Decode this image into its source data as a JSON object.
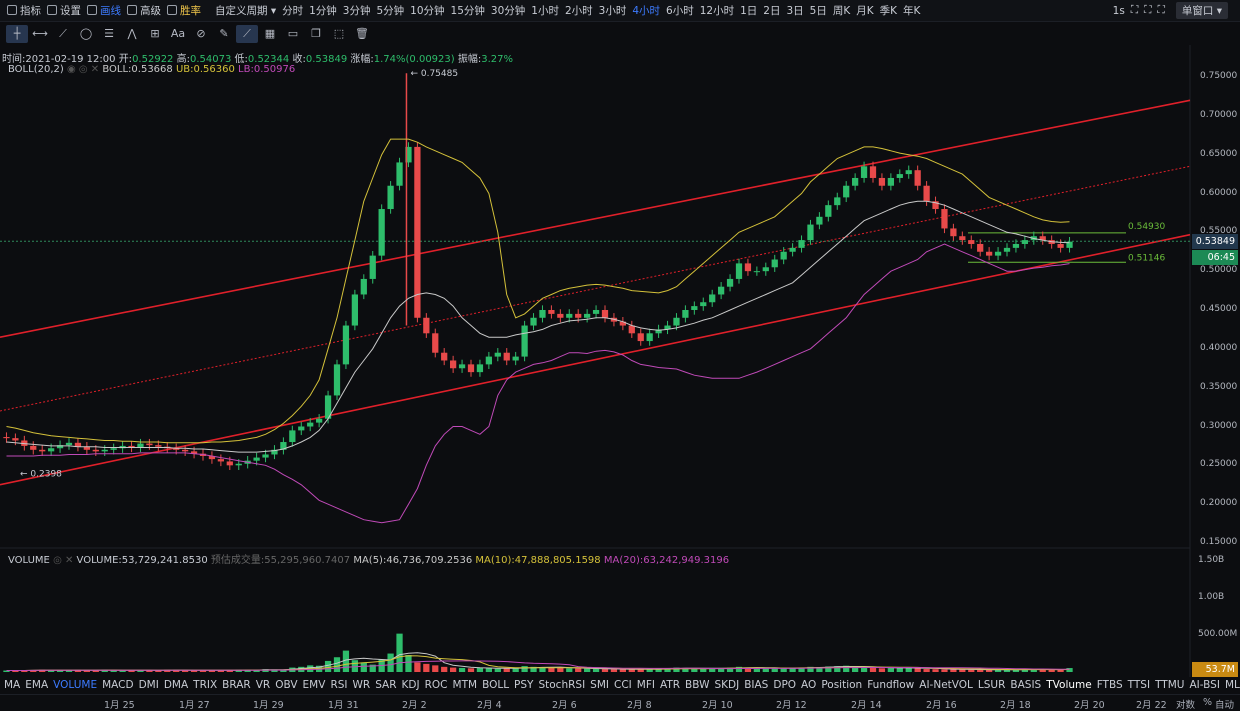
{
  "topbar": {
    "items": [
      "指标",
      "设置",
      "画线",
      "高级",
      "胜率",
      "自定义周期",
      "分时",
      "1分钟",
      "3分钟",
      "5分钟",
      "10分钟",
      "15分钟",
      "30分钟",
      "1小时",
      "2小时",
      "3小时",
      "4小时",
      "6小时",
      "12小时",
      "1日",
      "2日",
      "3日",
      "5日",
      "周K",
      "月K",
      "季K",
      "年K"
    ],
    "active_period": "4小时",
    "right": {
      "interval": "1s",
      "window_mode": "单窗口"
    }
  },
  "ohlc": {
    "time_label": "时间:",
    "time": "2021-02-19 12:00",
    "open_label": "开:",
    "open": "0.52922",
    "high_label": "高:",
    "high": "0.54073",
    "low_label": "低:",
    "low": "0.52344",
    "close_label": "收:",
    "close": "0.53849",
    "change_label": "涨幅:",
    "change": "1.74%(0.00923)",
    "amp_label": "振幅:",
    "amp": "3.27%"
  },
  "boll": {
    "name": "BOLL(20,2)",
    "mid": "BOLL:0.53668",
    "ub": "UB:0.56360",
    "lb": "LB:0.50976"
  },
  "volume": {
    "name": "VOLUME",
    "value": "VOLUME:53,729,241.8530",
    "est": "预估成交量:55,295,960.7407",
    "ma5": "MA(5):46,736,709.2536",
    "ma10": "MA(10):47,888,805.1598",
    "ma20": "MA(20):63,242,949.3196"
  },
  "price_axis": [
    "0.75000",
    "0.70000",
    "0.65000",
    "0.60000",
    "0.55000",
    "0.50000",
    "0.45000",
    "0.40000",
    "0.35000",
    "0.30000",
    "0.25000",
    "0.20000",
    "0.15000"
  ],
  "volume_axis": [
    "1.50B",
    "1.00B",
    "500.00M"
  ],
  "current_price": "0.53849",
  "countdown": "06:45",
  "current_volume": "53.7M",
  "annotations": {
    "high": "← 0.75485",
    "low": "← 0.2398",
    "upper_range": "0.54930",
    "lower_range": "0.51146"
  },
  "indicators": [
    "MA",
    "EMA",
    "VOLUME",
    "MACD",
    "DMI",
    "DMA",
    "TRIX",
    "BRAR",
    "VR",
    "OBV",
    "EMV",
    "RSI",
    "WR",
    "SAR",
    "KDJ",
    "ROC",
    "MTM",
    "BOLL",
    "PSY",
    "StochRSI",
    "SMI",
    "CCI",
    "MFI",
    "ATR",
    "BBW",
    "SKDJ",
    "BIAS",
    "DPO",
    "AO",
    "Position",
    "Fundflow",
    "AI-NetVOL",
    "LSUR",
    "BASIS",
    "TVolume",
    "FTBS",
    "TTSI",
    "TTMU",
    "AI-BSI",
    "MLR"
  ],
  "active_indicator": "VOLUME",
  "dates": [
    "1月 25",
    "1月 27",
    "1月 29",
    "1月 31",
    "2月 2",
    "2月 4",
    "2月 6",
    "2月 8",
    "2月 10",
    "2月 12",
    "2月 14",
    "2月 16",
    "2月 18",
    "2月 20",
    "2月 22"
  ],
  "bottom_right": {
    "log": "对数",
    "pct": "%",
    "auto": "自动"
  },
  "colors": {
    "up": "#2ebd6b",
    "down": "#e84a4a",
    "ub": "#d4c13a",
    "mid": "#c9c9c9",
    "lb": "#c04ab8",
    "channel": "#e0202a",
    "accent": "#3d7bff"
  },
  "chart_data": {
    "type": "candlestick",
    "ylim": [
      0.15,
      0.76
    ],
    "close": [
      0.285,
      0.282,
      0.275,
      0.27,
      0.268,
      0.272,
      0.276,
      0.279,
      0.274,
      0.27,
      0.268,
      0.27,
      0.272,
      0.275,
      0.273,
      0.278,
      0.276,
      0.274,
      0.272,
      0.27,
      0.268,
      0.265,
      0.262,
      0.258,
      0.255,
      0.25,
      0.252,
      0.256,
      0.26,
      0.264,
      0.27,
      0.28,
      0.295,
      0.3,
      0.305,
      0.31,
      0.34,
      0.38,
      0.43,
      0.47,
      0.49,
      0.52,
      0.58,
      0.61,
      0.64,
      0.66,
      0.44,
      0.42,
      0.395,
      0.385,
      0.375,
      0.38,
      0.37,
      0.38,
      0.39,
      0.395,
      0.385,
      0.39,
      0.43,
      0.44,
      0.45,
      0.445,
      0.44,
      0.445,
      0.44,
      0.445,
      0.45,
      0.44,
      0.435,
      0.43,
      0.42,
      0.41,
      0.42,
      0.425,
      0.43,
      0.44,
      0.45,
      0.455,
      0.46,
      0.47,
      0.48,
      0.49,
      0.51,
      0.5,
      0.5,
      0.505,
      0.515,
      0.525,
      0.53,
      0.54,
      0.56,
      0.57,
      0.585,
      0.595,
      0.61,
      0.62,
      0.635,
      0.62,
      0.61,
      0.62,
      0.625,
      0.63,
      0.61,
      0.59,
      0.58,
      0.555,
      0.545,
      0.54,
      0.535,
      0.525,
      0.52,
      0.525,
      0.53,
      0.535,
      0.54,
      0.545,
      0.54,
      0.535,
      0.53,
      0.538
    ],
    "ub": [
      0.3,
      0.298,
      0.295,
      0.292,
      0.29,
      0.288,
      0.287,
      0.286,
      0.285,
      0.284,
      0.283,
      0.282,
      0.282,
      0.281,
      0.281,
      0.28,
      0.28,
      0.28,
      0.279,
      0.279,
      0.279,
      0.279,
      0.279,
      0.28,
      0.28,
      0.281,
      0.282,
      0.284,
      0.286,
      0.29,
      0.296,
      0.304,
      0.314,
      0.326,
      0.34,
      0.36,
      0.4,
      0.44,
      0.49,
      0.54,
      0.59,
      0.62,
      0.65,
      0.67,
      0.67,
      0.67,
      0.666,
      0.66,
      0.655,
      0.65,
      0.645,
      0.64,
      0.63,
      0.62,
      0.6,
      0.55,
      0.47,
      0.44,
      0.445,
      0.455,
      0.465,
      0.47,
      0.475,
      0.478,
      0.48,
      0.482,
      0.483,
      0.482,
      0.48,
      0.478,
      0.475,
      0.474,
      0.473,
      0.472,
      0.475,
      0.48,
      0.49,
      0.5,
      0.51,
      0.52,
      0.53,
      0.54,
      0.55,
      0.555,
      0.56,
      0.565,
      0.57,
      0.58,
      0.59,
      0.6,
      0.615,
      0.625,
      0.635,
      0.645,
      0.65,
      0.655,
      0.66,
      0.66,
      0.658,
      0.655,
      0.652,
      0.65,
      0.648,
      0.645,
      0.64,
      0.635,
      0.63,
      0.625,
      0.615,
      0.605,
      0.595,
      0.59,
      0.585,
      0.58,
      0.575,
      0.57,
      0.566,
      0.564,
      0.563,
      0.5636
    ],
    "mid": [
      0.28,
      0.279,
      0.278,
      0.277,
      0.276,
      0.275,
      0.275,
      0.275,
      0.274,
      0.274,
      0.274,
      0.273,
      0.273,
      0.273,
      0.273,
      0.273,
      0.273,
      0.273,
      0.273,
      0.272,
      0.272,
      0.271,
      0.271,
      0.27,
      0.269,
      0.268,
      0.267,
      0.267,
      0.267,
      0.268,
      0.269,
      0.271,
      0.275,
      0.28,
      0.286,
      0.295,
      0.31,
      0.33,
      0.35,
      0.37,
      0.385,
      0.4,
      0.42,
      0.44,
      0.455,
      0.465,
      0.47,
      0.472,
      0.47,
      0.465,
      0.455,
      0.44,
      0.43,
      0.42,
      0.415,
      0.415,
      0.415,
      0.418,
      0.42,
      0.422,
      0.425,
      0.43,
      0.433,
      0.436,
      0.437,
      0.438,
      0.44,
      0.44,
      0.438,
      0.435,
      0.43,
      0.427,
      0.425,
      0.424,
      0.425,
      0.427,
      0.43,
      0.433,
      0.437,
      0.44,
      0.445,
      0.45,
      0.455,
      0.46,
      0.465,
      0.47,
      0.475,
      0.48,
      0.485,
      0.495,
      0.505,
      0.515,
      0.525,
      0.535,
      0.545,
      0.555,
      0.565,
      0.57,
      0.575,
      0.58,
      0.585,
      0.588,
      0.59,
      0.59,
      0.588,
      0.585,
      0.58,
      0.575,
      0.57,
      0.565,
      0.56,
      0.555,
      0.55,
      0.548,
      0.545,
      0.542,
      0.54,
      0.538,
      0.537,
      0.5367
    ],
    "lb": [
      0.262,
      0.262,
      0.262,
      0.262,
      0.263,
      0.263,
      0.263,
      0.264,
      0.264,
      0.264,
      0.265,
      0.265,
      0.265,
      0.265,
      0.265,
      0.266,
      0.266,
      0.266,
      0.266,
      0.266,
      0.266,
      0.265,
      0.264,
      0.262,
      0.26,
      0.258,
      0.256,
      0.254,
      0.252,
      0.25,
      0.245,
      0.238,
      0.232,
      0.225,
      0.215,
      0.205,
      0.2,
      0.195,
      0.19,
      0.185,
      0.18,
      0.178,
      0.176,
      0.178,
      0.18,
      0.2,
      0.22,
      0.25,
      0.275,
      0.29,
      0.3,
      0.3,
      0.295,
      0.29,
      0.3,
      0.34,
      0.36,
      0.37,
      0.375,
      0.38,
      0.382,
      0.385,
      0.39,
      0.395,
      0.395,
      0.394,
      0.397,
      0.398,
      0.396,
      0.392,
      0.385,
      0.38,
      0.378,
      0.376,
      0.375,
      0.374,
      0.37,
      0.366,
      0.364,
      0.362,
      0.362,
      0.362,
      0.362,
      0.366,
      0.37,
      0.375,
      0.38,
      0.385,
      0.39,
      0.395,
      0.4,
      0.41,
      0.42,
      0.43,
      0.44,
      0.455,
      0.47,
      0.48,
      0.49,
      0.5,
      0.505,
      0.51,
      0.515,
      0.525,
      0.53,
      0.535,
      0.53,
      0.525,
      0.52,
      0.515,
      0.51,
      0.505,
      0.5,
      0.5,
      0.502,
      0.504,
      0.505,
      0.507,
      0.508,
      0.5098
    ],
    "volume": [
      20,
      22,
      18,
      25,
      30,
      22,
      24,
      20,
      28,
      26,
      22,
      30,
      25,
      18,
      22,
      26,
      24,
      20,
      30,
      28,
      25,
      22,
      20,
      26,
      24,
      22,
      30,
      28,
      26,
      40,
      35,
      30,
      60,
      70,
      90,
      85,
      150,
      200,
      290,
      160,
      130,
      100,
      170,
      250,
      520,
      230,
      130,
      110,
      90,
      70,
      60,
      55,
      50,
      55,
      50,
      45,
      48,
      50,
      80,
      70,
      65,
      60,
      55,
      50,
      48,
      45,
      42,
      40,
      38,
      36,
      35,
      34,
      40,
      45,
      50,
      60,
      55,
      50,
      45,
      48,
      52,
      58,
      70,
      60,
      55,
      50,
      48,
      52,
      55,
      60,
      70,
      65,
      75,
      80,
      85,
      70,
      60,
      55,
      50,
      52,
      58,
      60,
      48,
      40,
      38,
      36,
      35,
      34,
      32,
      30,
      28,
      30,
      32,
      34,
      36,
      38,
      34,
      30,
      28,
      53.7
    ]
  }
}
